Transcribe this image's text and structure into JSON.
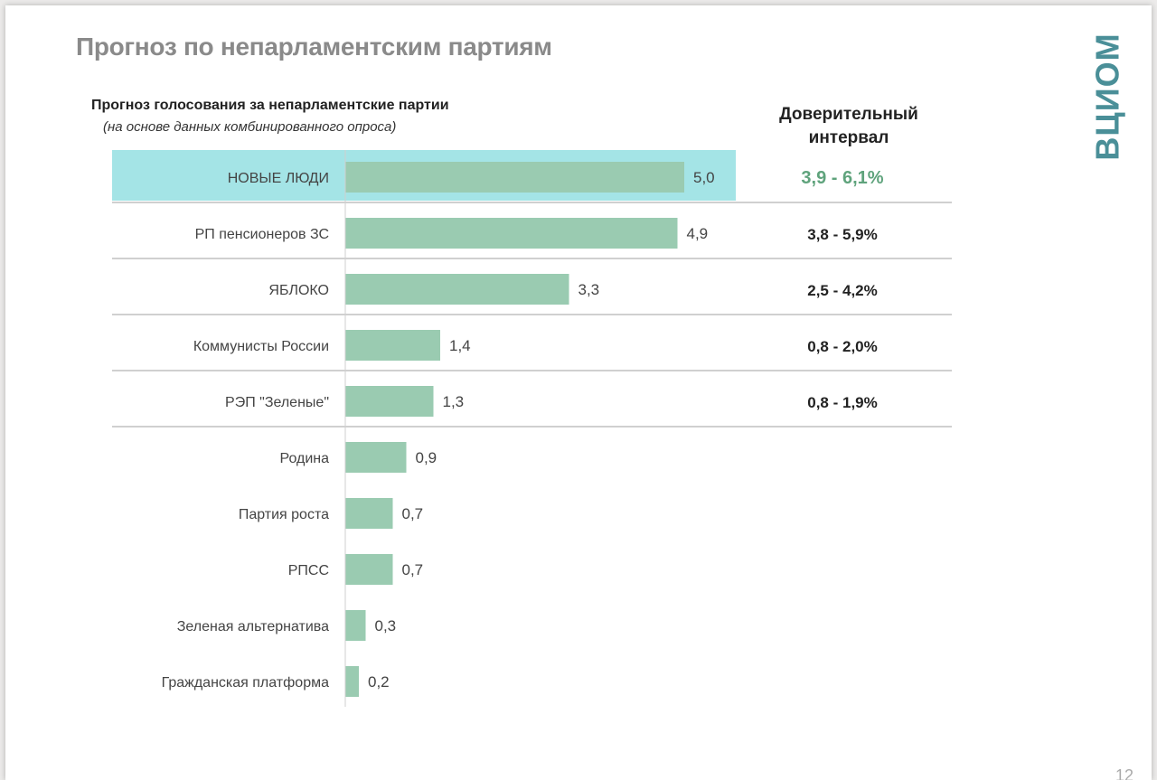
{
  "page": {
    "title": "Прогноз по непарламентским партиям",
    "logo_text": "ВЦИОМ",
    "page_number": "12"
  },
  "chart_data": {
    "type": "bar",
    "orientation": "horizontal",
    "title": "Прогноз голосования за непарламентские партии",
    "subtitle": "(на основе данных комбинированного опроса)",
    "ci_header": "Доверительный интервал",
    "categories": [
      "НОВЫЕ ЛЮДИ",
      "РП пенсионеров ЗС",
      "ЯБЛОКО",
      "Коммунисты России",
      "РЭП \"Зеленые\"",
      "Родина",
      "Партия роста",
      "РПСС",
      "Зеленая альтернатива",
      "Гражданская платформа"
    ],
    "values": [
      5.0,
      4.9,
      3.3,
      1.4,
      1.3,
      0.9,
      0.7,
      0.7,
      0.3,
      0.2
    ],
    "value_labels": [
      "5,0",
      "4,9",
      "3,3",
      "1,4",
      "1,3",
      "0,9",
      "0,7",
      "0,7",
      "0,3",
      "0,2"
    ],
    "confidence_intervals": [
      "3,9 - 6,1%",
      "3,8 - 5,9%",
      "2,5 - 4,2%",
      "0,8 - 2,0%",
      "0,8 - 1,9%"
    ],
    "highlighted_index": 0,
    "xlim": [
      0,
      5.0
    ],
    "grid": false,
    "colors": {
      "bar": "#9acbb1",
      "highlight_bg": "#a4e4e6",
      "ci_highlight": "#5fa37c",
      "separator": "#b5b5b5"
    }
  }
}
